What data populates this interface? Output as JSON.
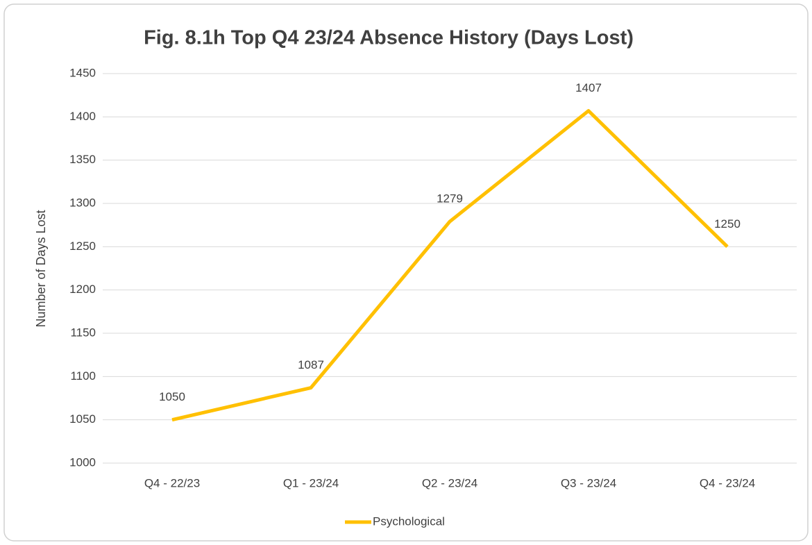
{
  "chart_data": {
    "type": "line",
    "title": "Fig. 8.1h Top Q4 23/24 Absence History (Days Lost)",
    "y_label": "Number of Days Lost",
    "categories": [
      "Q4 - 22/23",
      "Q1 - 23/24",
      "Q2 - 23/24",
      "Q3 - 23/24",
      "Q4 - 23/24"
    ],
    "series": [
      {
        "name": "Psychological",
        "color": "#ffc000",
        "values": [
          1050,
          1087,
          1279,
          1407,
          1250
        ]
      }
    ],
    "ylim": [
      1000,
      1450
    ],
    "yticks": [
      1000,
      1050,
      1100,
      1150,
      1200,
      1250,
      1300,
      1350,
      1400,
      1450
    ],
    "grid": true,
    "legend": "bottom",
    "data_labels": true
  }
}
